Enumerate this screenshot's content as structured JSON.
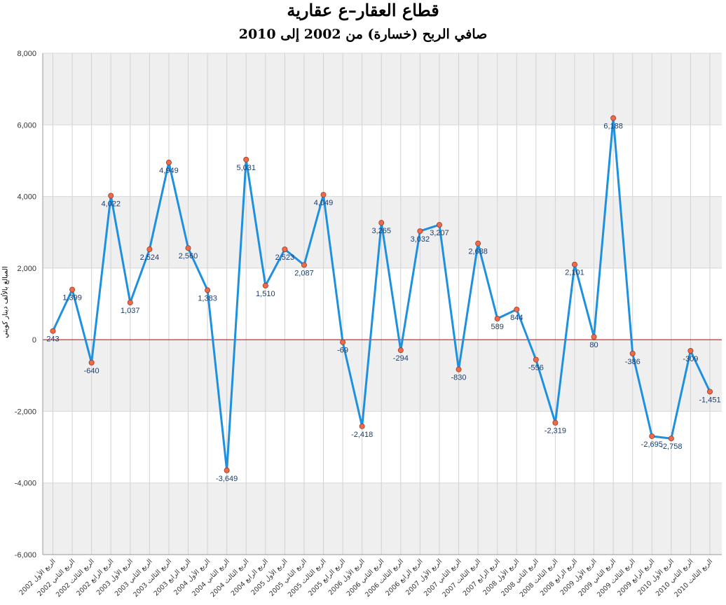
{
  "title": "قطاع العقار–ع عقارية",
  "subtitle": "صافي الربح (خسارة) من 2002 إلى 2010",
  "chart_data": {
    "type": "line",
    "title": "قطاع العقار–ع عقارية",
    "subtitle": "صافي الربح (خسارة) من 2002 إلى 2010",
    "ylabel": "المبالغ بالألف دينار كويتي",
    "xlabel": "",
    "ylim": [
      -6000,
      8000
    ],
    "yticks": [
      -6000,
      -4000,
      -2000,
      0,
      2000,
      4000,
      6000,
      8000
    ],
    "ytick_labels": [
      "-6,000",
      "-4,000",
      "-2,000",
      "0",
      "2,000",
      "4,000",
      "6,000",
      "8,000"
    ],
    "grid": true,
    "legend": "none",
    "colors": {
      "line": "#1e90e0",
      "marker": "#ee6a4a",
      "zero_line": "#cc0000",
      "band": "#efefef"
    },
    "categories": [
      "الربع الأول 2002",
      "الربع الثاني 2002",
      "الربع الثالث 2002",
      "الربع الرابع 2002",
      "الربع الأول 2003",
      "الربع الثاني 2003",
      "الربع الثالث 2003",
      "الربع الرابع 2003",
      "الربع الأول 2004",
      "الربع الثاني 2004",
      "الربع الثالث 2004",
      "الربع الرابع 2004",
      "الربع الأول 2005",
      "الربع الثاني 2005",
      "الربع الثالث 2005",
      "الربع الرابع 2005",
      "الربع الأول 2006",
      "الربع الثاني 2006",
      "الربع الثالث 2006",
      "الربع الرابع 2006",
      "الربع الأول 2007",
      "الربع الثاني 2007",
      "الربع الثالث 2007",
      "الربع الرابع 2007",
      "الربع الأول 2008",
      "الربع الثاني 2008",
      "الربع الثالث 2008",
      "الربع الرابع 2008",
      "الربع الأول 2009",
      "الربع الثاني 2009",
      "الربع الثالث 2009",
      "الربع الرابع 2009",
      "الربع الأول 2010",
      "الربع الثاني 2010",
      "الربع الثالث 2010"
    ],
    "values": [
      243,
      1399,
      -640,
      4022,
      1037,
      2524,
      4949,
      2560,
      1383,
      -3649,
      5031,
      1510,
      2523,
      2087,
      4049,
      -69,
      -2418,
      3265,
      -294,
      3032,
      3207,
      -830,
      2688,
      589,
      844,
      -556,
      -2319,
      2101,
      80,
      6188,
      -386,
      -2695,
      -2758,
      -309,
      -1451
    ],
    "value_labels": [
      "243",
      "1,399",
      "-640",
      "4,022",
      "1,037",
      "2,524",
      "4,949",
      "2,560",
      "1,383",
      "-3,649",
      "5,031",
      "1,510",
      "2,523",
      "2,087",
      "4,049",
      "-69",
      "-2,418",
      "3,265",
      "-294",
      "3,032",
      "3,207",
      "-830",
      "2,688",
      "589",
      "844",
      "-556",
      "-2,319",
      "2,101",
      "80",
      "6,188",
      "-386",
      "-2,695",
      "-2,758",
      "-309",
      "-1,451"
    ]
  }
}
